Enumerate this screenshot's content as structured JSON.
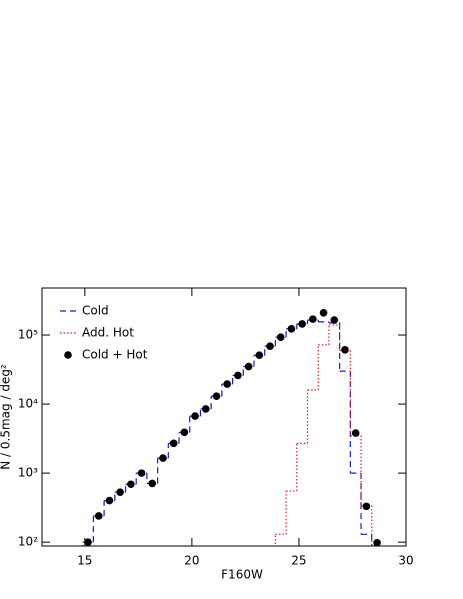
{
  "chart_data": {
    "type": "step",
    "xlabel": "F160W",
    "ylabel": "N / 0.5mag / deg²",
    "xlim": [
      13,
      30
    ],
    "xticks": [
      15,
      20,
      25,
      30
    ],
    "ylim": [
      88,
      480000
    ],
    "log_y": true,
    "yticks": [
      {
        "value": 100,
        "label": "10²"
      },
      {
        "value": 1000,
        "label": "10³"
      },
      {
        "value": 10000,
        "label": "10⁴"
      },
      {
        "value": 100000,
        "label": "10⁵"
      }
    ],
    "legend": "upper left",
    "x": [
      15.15,
      15.65,
      16.15,
      16.65,
      17.15,
      17.65,
      18.15,
      18.65,
      19.15,
      19.65,
      20.15,
      20.65,
      21.15,
      21.65,
      22.15,
      22.65,
      23.15,
      23.65,
      24.15,
      24.65,
      25.15,
      25.65,
      26.15,
      26.65,
      27.15,
      27.65,
      28.15,
      28.65
    ],
    "series": [
      {
        "name": "Cold",
        "color": "#1a1acc",
        "style": "dashed",
        "values": [
          100,
          240,
          400,
          530,
          690,
          1000,
          710,
          1650,
          2700,
          3900,
          6700,
          8500,
          13000,
          19500,
          26000,
          35000,
          51000,
          69000,
          93000,
          123000,
          145000,
          165000,
          155000,
          150000,
          30000,
          1000,
          130,
          null
        ]
      },
      {
        "name": "Add. Hot",
        "color": "#e02020",
        "style": "dotted",
        "values": [
          null,
          null,
          null,
          null,
          null,
          null,
          null,
          null,
          null,
          null,
          null,
          null,
          null,
          null,
          null,
          null,
          null,
          null,
          130,
          550,
          2700,
          16000,
          72000,
          140000,
          60000,
          3500,
          340,
          90
        ]
      },
      {
        "name": "Cold + Hot",
        "color": "#000000",
        "style": "points",
        "values": [
          100,
          240,
          400,
          530,
          690,
          1000,
          710,
          1650,
          2700,
          3900,
          6700,
          8500,
          13000,
          19500,
          26000,
          35000,
          51000,
          69000,
          93000,
          123000,
          145000,
          170000,
          210000,
          165000,
          61000,
          3800,
          330,
          98
        ]
      }
    ]
  }
}
